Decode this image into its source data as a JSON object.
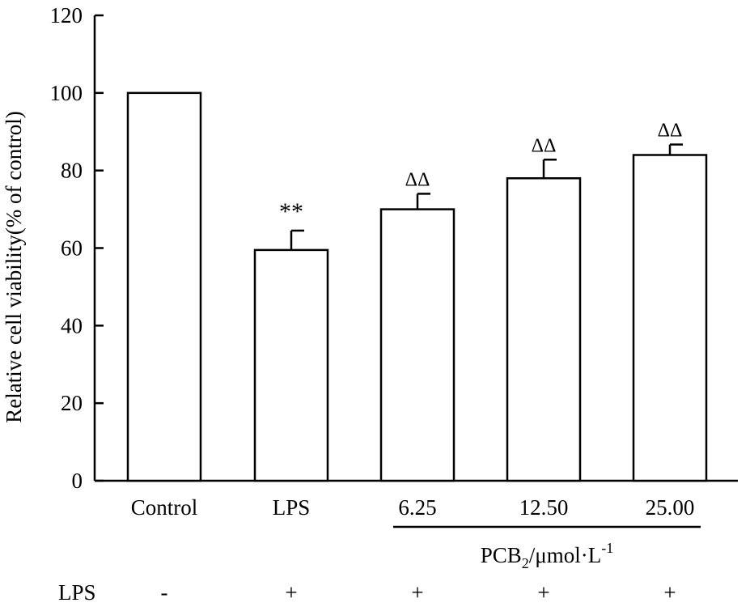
{
  "chart_data": {
    "type": "bar",
    "ylabel": "Relative cell viability(% of control)",
    "ylim": [
      0,
      120
    ],
    "yticks": [
      "0",
      "20",
      "40",
      "60",
      "80",
      "100",
      "120"
    ],
    "categories": [
      "Control",
      "LPS",
      "6.25",
      "12.50",
      "25.00"
    ],
    "values": [
      100,
      59.5,
      70,
      78,
      84
    ],
    "errors": [
      0,
      5,
      4,
      4.8,
      2.7
    ],
    "annotations": [
      "",
      "**",
      "ΔΔ",
      "ΔΔ",
      "ΔΔ"
    ],
    "group_label": {
      "main": "PCB",
      "subscript": "2",
      "unit": "/μmol·L",
      "superscript": "-1"
    },
    "lps_row": {
      "label": "LPS",
      "values": [
        "-",
        "+",
        "+",
        "+",
        "+"
      ]
    },
    "colors": {
      "bar_fill": "#ffffff",
      "stroke": "#000000"
    }
  }
}
